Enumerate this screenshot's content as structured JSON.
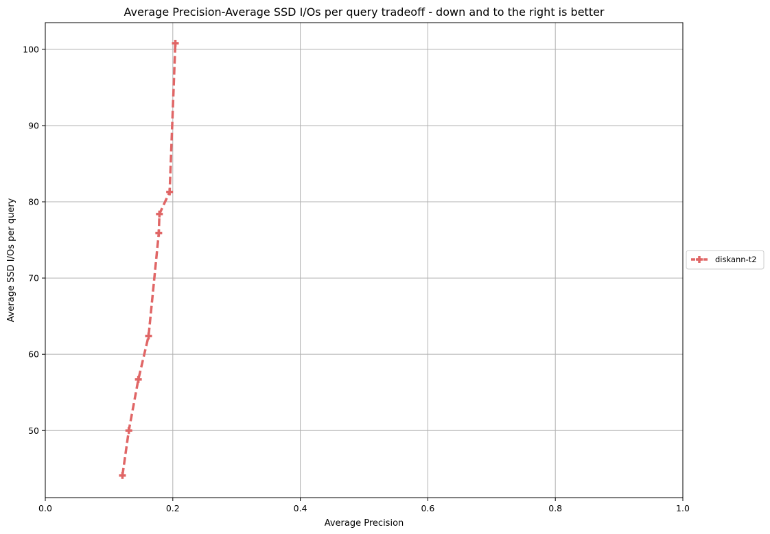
{
  "chart_data": {
    "type": "line",
    "title": "Average Precision-Average SSD I/Os per query tradeoff - down and to the right is better",
    "xlabel": "Average Precision",
    "ylabel": "Average SSD I/Os per query",
    "xlim": [
      0.0,
      1.0
    ],
    "ylim": [
      41.2,
      103.5
    ],
    "xticks": [
      0.0,
      0.2,
      0.4,
      0.6,
      0.8,
      1.0
    ],
    "xtick_labels": [
      "0.0",
      "0.2",
      "0.4",
      "0.6",
      "0.8",
      "1.0"
    ],
    "yticks": [
      50,
      60,
      70,
      80,
      90,
      100
    ],
    "ytick_labels": [
      "50",
      "60",
      "70",
      "80",
      "90",
      "100"
    ],
    "grid": true,
    "legend_position": "outside-right",
    "series": [
      {
        "name": "diskann-t2",
        "color": "#e06666",
        "style": "dashed",
        "marker": "plus",
        "x": [
          0.121,
          0.131,
          0.146,
          0.162,
          0.178,
          0.179,
          0.195,
          0.204
        ],
        "y": [
          44.1,
          50.0,
          56.7,
          62.4,
          75.9,
          78.4,
          81.3,
          100.8
        ]
      }
    ]
  }
}
